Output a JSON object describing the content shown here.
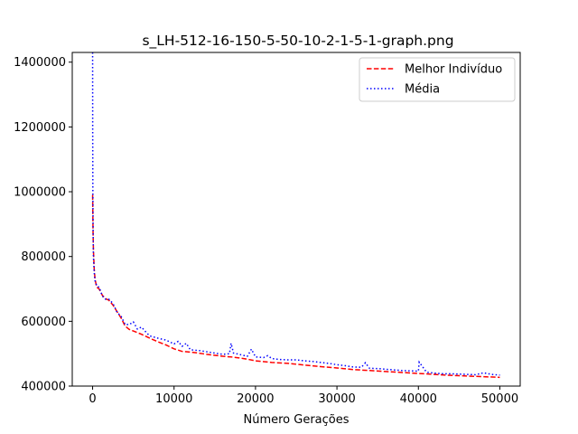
{
  "chart_data": {
    "type": "line",
    "title": "s_LH-512-16-150-5-50-10-2-1-5-1-graph.png",
    "xlabel": "Número Gerações",
    "ylabel": "",
    "xlim": [
      -2500,
      52500
    ],
    "ylim": [
      400000,
      1430000
    ],
    "xticks": [
      0,
      10000,
      20000,
      30000,
      40000,
      50000
    ],
    "yticks": [
      400000,
      600000,
      800000,
      1000000,
      1200000,
      1400000
    ],
    "grid": false,
    "legend_position": "upper right",
    "series": [
      {
        "name": "Melhor Indivíduo",
        "color": "#ff0000",
        "style": "dashed",
        "x": [
          0,
          20,
          50,
          100,
          200,
          300,
          500,
          800,
          1200,
          1600,
          2000,
          2500,
          3000,
          3500,
          4000,
          4500,
          5000,
          6000,
          7000,
          8000,
          9000,
          10000,
          11000,
          12000,
          13000,
          14000,
          15000,
          16000,
          17000,
          18000,
          19000,
          20000,
          22000,
          24000,
          26000,
          28000,
          30000,
          32000,
          34000,
          36000,
          38000,
          40000,
          42000,
          44000,
          46000,
          48000,
          50000
        ],
        "y": [
          990000,
          950000,
          880000,
          820000,
          760000,
          730000,
          705000,
          700000,
          680000,
          670000,
          665000,
          650000,
          630000,
          610000,
          585000,
          575000,
          570000,
          560000,
          548000,
          537000,
          527000,
          515000,
          507000,
          505000,
          502000,
          498000,
          495000,
          492000,
          490000,
          487000,
          483000,
          478000,
          473000,
          470000,
          465000,
          460000,
          456000,
          451000,
          448000,
          445000,
          442000,
          439000,
          436000,
          433000,
          431000,
          429000,
          427000
        ]
      },
      {
        "name": "Média",
        "color": "#0000ff",
        "style": "dotted",
        "x": [
          0,
          10,
          30,
          60,
          100,
          200,
          300,
          500,
          800,
          1200,
          1600,
          2000,
          2500,
          3000,
          3500,
          4000,
          4500,
          5000,
          5500,
          6000,
          6500,
          7000,
          8000,
          9000,
          10000,
          10500,
          11000,
          11500,
          12000,
          13000,
          14000,
          15000,
          16000,
          16800,
          17000,
          17300,
          18000,
          19000,
          19500,
          20000,
          21000,
          21500,
          22000,
          23000,
          24000,
          25000,
          26000,
          27000,
          28000,
          29000,
          30000,
          31000,
          32000,
          33000,
          33500,
          34000,
          35000,
          36000,
          37000,
          38000,
          39000,
          40000,
          40100,
          41000,
          42000,
          43000,
          44000,
          45000,
          46000,
          47000,
          48000,
          49000,
          50000
        ],
        "y": [
          1430000,
          1200000,
          1000000,
          880000,
          800000,
          750000,
          725000,
          710000,
          705000,
          678000,
          668000,
          668000,
          655000,
          628000,
          615000,
          590000,
          590000,
          598000,
          576000,
          582000,
          568000,
          555000,
          548000,
          542000,
          530000,
          538000,
          523000,
          532000,
          512000,
          510000,
          506000,
          502000,
          498000,
          500000,
          532000,
          502000,
          498000,
          492000,
          514000,
          490000,
          488000,
          494000,
          485000,
          482000,
          481000,
          481000,
          478000,
          476000,
          473000,
          470000,
          466000,
          463000,
          459000,
          458000,
          472000,
          455000,
          454000,
          452000,
          450000,
          448000,
          447000,
          446000,
          474000,
          443000,
          440000,
          438000,
          438000,
          437000,
          436000,
          435000,
          441000,
          436000,
          434000
        ]
      }
    ]
  }
}
